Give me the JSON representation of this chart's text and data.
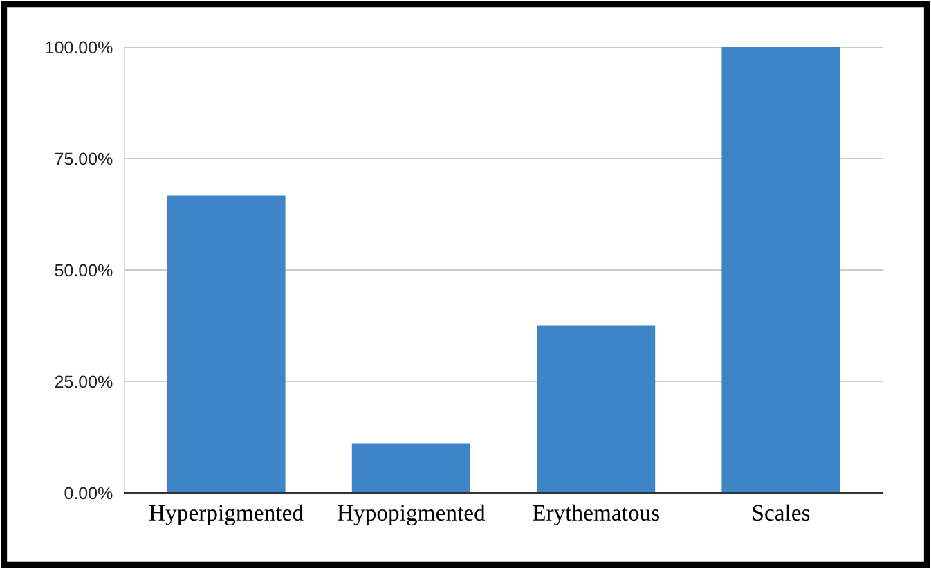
{
  "chart_data": {
    "type": "bar",
    "categories": [
      "Hyperpigmented",
      "Hypopigmented",
      "Erythematous",
      "Scales"
    ],
    "values": [
      66.7,
      11.1,
      37.5,
      100
    ],
    "color": "#3d85c6",
    "ylim": [
      0,
      100
    ],
    "yticks": [
      {
        "value": 0,
        "label": "0.00%"
      },
      {
        "value": 25,
        "label": "25.00%"
      },
      {
        "value": 50,
        "label": "50.00%"
      },
      {
        "value": 75,
        "label": "75.00%"
      },
      {
        "value": 100,
        "label": "100.00%"
      }
    ],
    "grid": "y",
    "legend": false
  }
}
